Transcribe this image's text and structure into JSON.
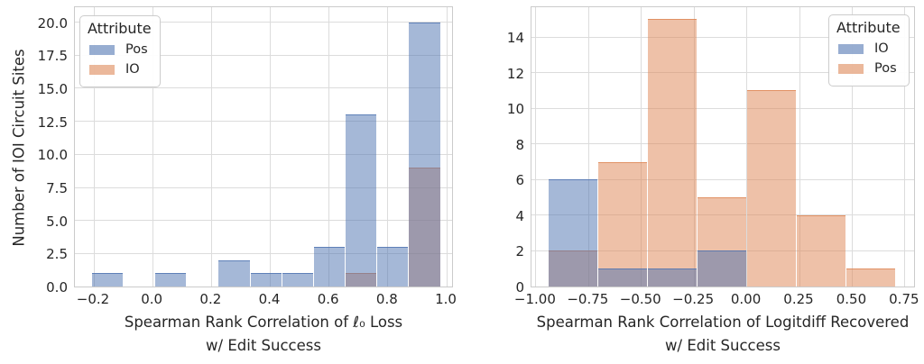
{
  "figure": {
    "background": "#ffffff"
  },
  "palette": {
    "blue": "#4c72b0",
    "orange": "#dd8452",
    "grid": "#dcdcdc",
    "spine": "#cbcbcb",
    "text": "#262626",
    "overlap_observed": "#9d9aac"
  },
  "chart_data": [
    {
      "type": "histogram",
      "title": "",
      "xlabel_lines": [
        "Spearman Rank Correlation of ℓ₀ Loss",
        "w/ Edit Success"
      ],
      "ylabel": "Number of IOI Circuit Sites",
      "xlim": [
        -0.2645,
        1.0245
      ],
      "ylim": [
        0,
        21.27
      ],
      "grid": true,
      "xticks": [
        -0.2,
        0.0,
        0.2,
        0.4,
        0.6,
        0.8,
        1.0
      ],
      "xtick_labels": [
        "−0.2",
        "0.0",
        "0.2",
        "0.4",
        "0.6",
        "0.8",
        "1.0"
      ],
      "yticks": [
        0,
        2.5,
        5,
        7.5,
        10,
        12.5,
        15,
        17.5,
        20
      ],
      "ytick_labels": [
        "0.0",
        "2.5",
        "5.0",
        "7.5",
        "10.0",
        "12.5",
        "15.0",
        "17.5",
        "20.0"
      ],
      "bin_edges": [
        -0.209,
        -0.101,
        0.007,
        0.115,
        0.223,
        0.331,
        0.439,
        0.547,
        0.655,
        0.763,
        0.871,
        0.979
      ],
      "series": [
        {
          "name": "Pos",
          "color": "#4c72b0",
          "alpha": 0.5,
          "values": [
            1,
            0,
            1,
            0,
            2,
            1,
            1,
            3,
            13,
            3,
            20
          ]
        },
        {
          "name": "IO",
          "color": "#dd8452",
          "alpha": 0.5,
          "values": [
            0,
            0,
            0,
            0,
            0,
            0,
            0,
            0,
            1,
            0,
            9
          ]
        }
      ],
      "legend": {
        "title": "Attribute",
        "position": "upper-left",
        "entries": [
          {
            "label": "Pos",
            "color": "#4c72b0"
          },
          {
            "label": "IO",
            "color": "#dd8452"
          }
        ]
      }
    },
    {
      "type": "histogram",
      "title": "",
      "xlabel_lines": [
        "Spearman Rank Correlation of Logitdiff Recovered",
        "w/ Edit Success"
      ],
      "ylabel": "",
      "xlim": [
        -1.021,
        0.802
      ],
      "ylim": [
        0,
        15.77
      ],
      "grid": true,
      "xticks": [
        -1.0,
        -0.75,
        -0.5,
        -0.25,
        0.0,
        0.25,
        0.5,
        0.75
      ],
      "xtick_labels": [
        "−1.00",
        "−0.75",
        "−0.50",
        "−0.25",
        "0.00",
        "0.25",
        "0.50",
        "0.75"
      ],
      "yticks": [
        0,
        2,
        4,
        6,
        8,
        10,
        12,
        14
      ],
      "ytick_labels": [
        "0",
        "2",
        "4",
        "6",
        "8",
        "10",
        "12",
        "14"
      ],
      "bin_edges": [
        -0.94,
        -0.705,
        -0.47,
        -0.235,
        0.0,
        0.235,
        0.47,
        0.705
      ],
      "series": [
        {
          "name": "IO",
          "color": "#4c72b0",
          "alpha": 0.5,
          "values": [
            6,
            1,
            1,
            2,
            0,
            0,
            0
          ]
        },
        {
          "name": "Pos",
          "color": "#dd8452",
          "alpha": 0.5,
          "values": [
            2,
            7,
            15,
            5,
            11,
            4,
            1
          ]
        }
      ],
      "legend": {
        "title": "Attribute",
        "position": "upper-right",
        "entries": [
          {
            "label": "IO",
            "color": "#4c72b0"
          },
          {
            "label": "Pos",
            "color": "#dd8452"
          }
        ]
      }
    }
  ]
}
